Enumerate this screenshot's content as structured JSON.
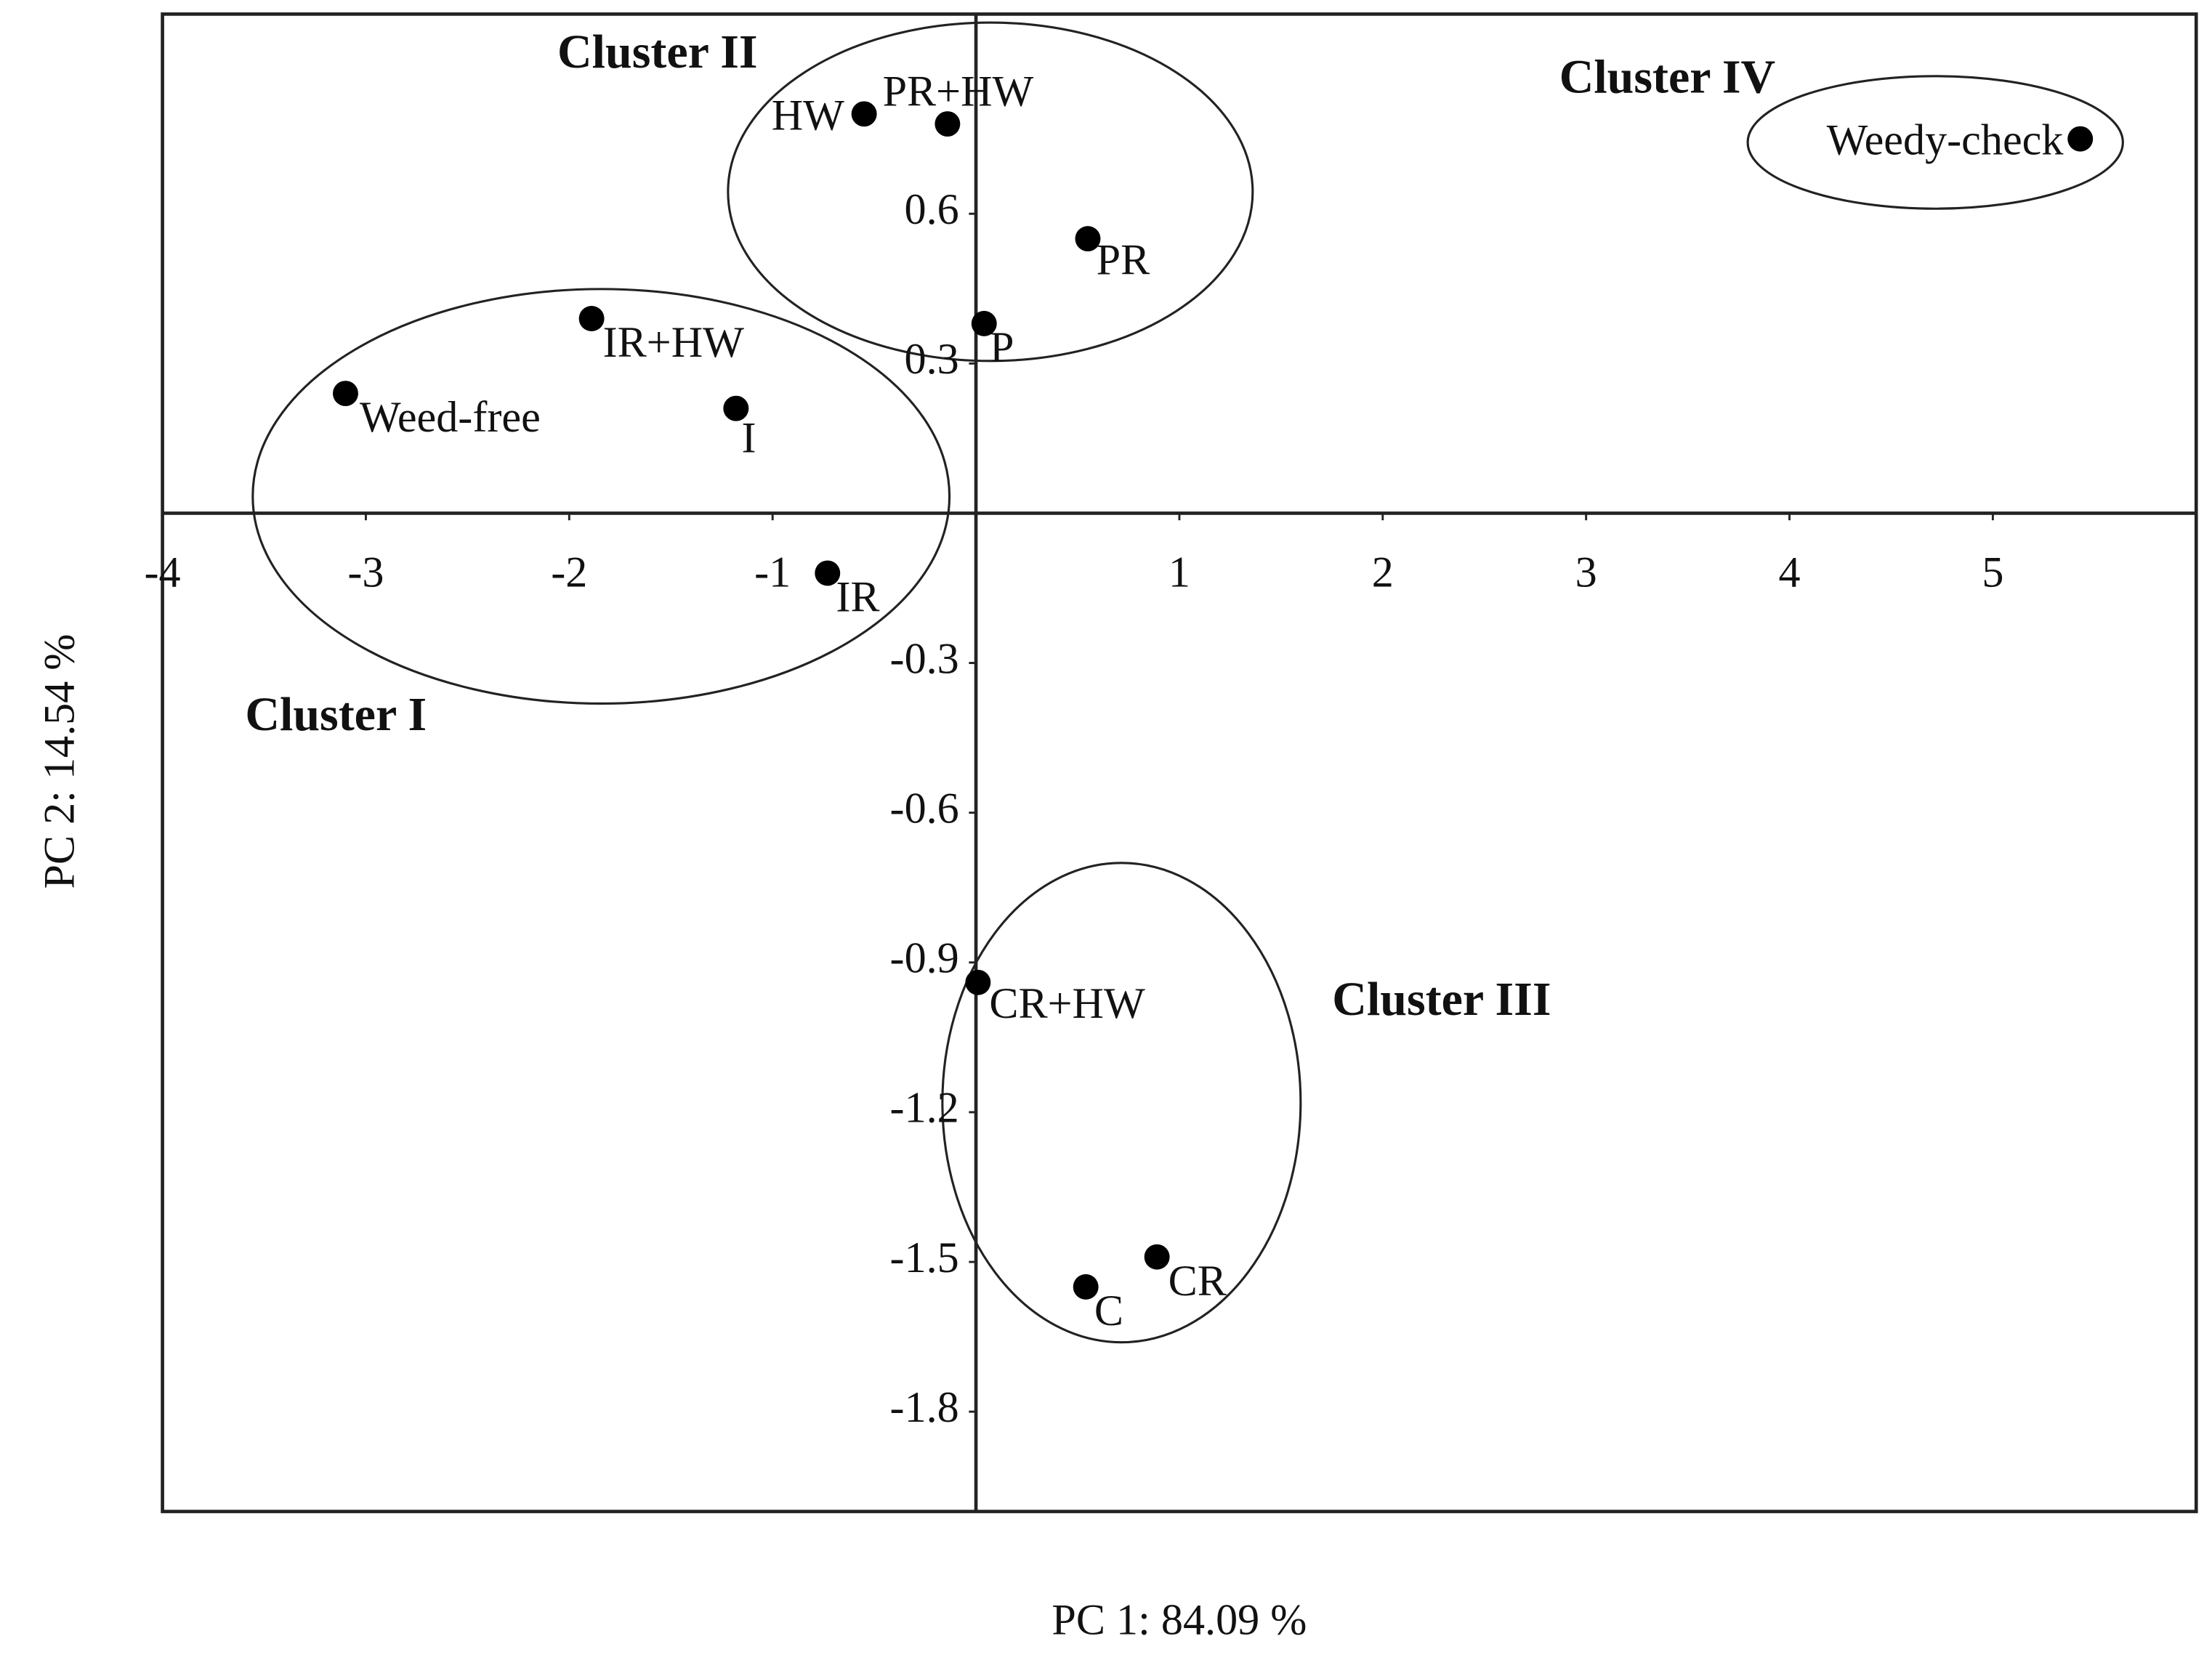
{
  "chart_data": {
    "type": "scatter",
    "x_label": "PC 1: 84.09 %",
    "y_label": "PC 2: 14.54 %",
    "xlim": [
      -4,
      6
    ],
    "ylim": [
      -2,
      1
    ],
    "xticks": [
      -4,
      -3,
      -2,
      -1,
      1,
      2,
      3,
      4,
      5
    ],
    "yticks": [
      -1.8,
      -1.5,
      -1.2,
      -0.9,
      -0.6,
      -0.3,
      0.3,
      0.6
    ],
    "series": [
      {
        "color": "#000000",
        "point_labels": [
          "Weed-free",
          "IR+HW",
          "I",
          "IR",
          "HW",
          "PR+HW",
          "PR",
          "P",
          "Weedy-check",
          "CR+HW",
          "C",
          "CR"
        ],
        "x": [
          -3.1,
          -1.89,
          -1.18,
          -0.73,
          -0.55,
          -0.14,
          0.55,
          0.04,
          5.43,
          0.01,
          0.54,
          0.89
        ],
        "values": [
          0.24,
          0.39,
          0.21,
          -0.12,
          0.8,
          0.78,
          0.55,
          0.38,
          0.75,
          -0.94,
          -1.55,
          -1.49
        ]
      }
    ],
    "annotations": [
      "Cluster I",
      "Cluster II",
      "Cluster III",
      "Cluster IV"
    ]
  }
}
